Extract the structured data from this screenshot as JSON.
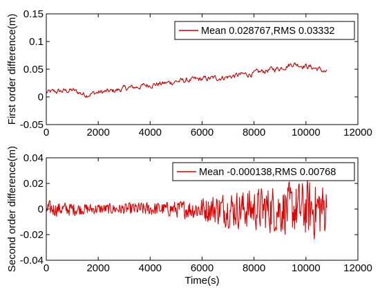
{
  "chart_data": [
    {
      "type": "line",
      "title": "",
      "xlabel": "",
      "ylabel": "First order difference(m)",
      "xlim": [
        0,
        12000
      ],
      "ylim": [
        -0.05,
        0.15
      ],
      "xticks": [
        "0",
        "2000",
        "4000",
        "6000",
        "8000",
        "10000",
        "12000"
      ],
      "yticks": [
        "-0.05",
        "0",
        "0.05",
        "0.1",
        "0.15"
      ],
      "grid": false,
      "legend_position": "top-right",
      "series": [
        {
          "name": "Mean 0.028767,RMS 0.03332",
          "color": "#c00000",
          "x": [
            0,
            500,
            1000,
            1500,
            2000,
            2500,
            3000,
            3500,
            4000,
            4500,
            5000,
            5500,
            6000,
            6500,
            7000,
            7500,
            8000,
            8500,
            9000,
            9500,
            10000,
            10500,
            10800
          ],
          "y": [
            0.008,
            0.01,
            0.012,
            0.004,
            0.008,
            0.01,
            0.015,
            0.018,
            0.022,
            0.024,
            0.028,
            0.03,
            0.032,
            0.034,
            0.036,
            0.04,
            0.042,
            0.048,
            0.052,
            0.06,
            0.056,
            0.05,
            0.044
          ]
        }
      ]
    },
    {
      "type": "line",
      "title": "",
      "xlabel": "Time(s)",
      "ylabel": "Second order difference(m)",
      "xlim": [
        0,
        12000
      ],
      "ylim": [
        -0.04,
        0.04
      ],
      "xticks": [
        "0",
        "2000",
        "4000",
        "6000",
        "8000",
        "10000",
        "12000"
      ],
      "yticks": [
        "-0.04",
        "-0.02",
        "0",
        "0.02",
        "0.04"
      ],
      "grid": false,
      "legend_position": "top-right",
      "series": [
        {
          "name": "Mean -0.000138,RMS 0.00768",
          "color": "#e00000",
          "x": [
            0,
            500,
            1000,
            1500,
            2000,
            2500,
            3000,
            3500,
            4000,
            4500,
            5000,
            5500,
            6000,
            6500,
            7000,
            7500,
            8000,
            8500,
            9000,
            9500,
            10000,
            10500,
            10800
          ],
          "amplitude": [
            0.006,
            0.005,
            0.005,
            0.004,
            0.004,
            0.004,
            0.004,
            0.005,
            0.005,
            0.005,
            0.006,
            0.007,
            0.009,
            0.011,
            0.013,
            0.014,
            0.015,
            0.017,
            0.018,
            0.019,
            0.021,
            0.022,
            0.02
          ]
        }
      ]
    }
  ]
}
